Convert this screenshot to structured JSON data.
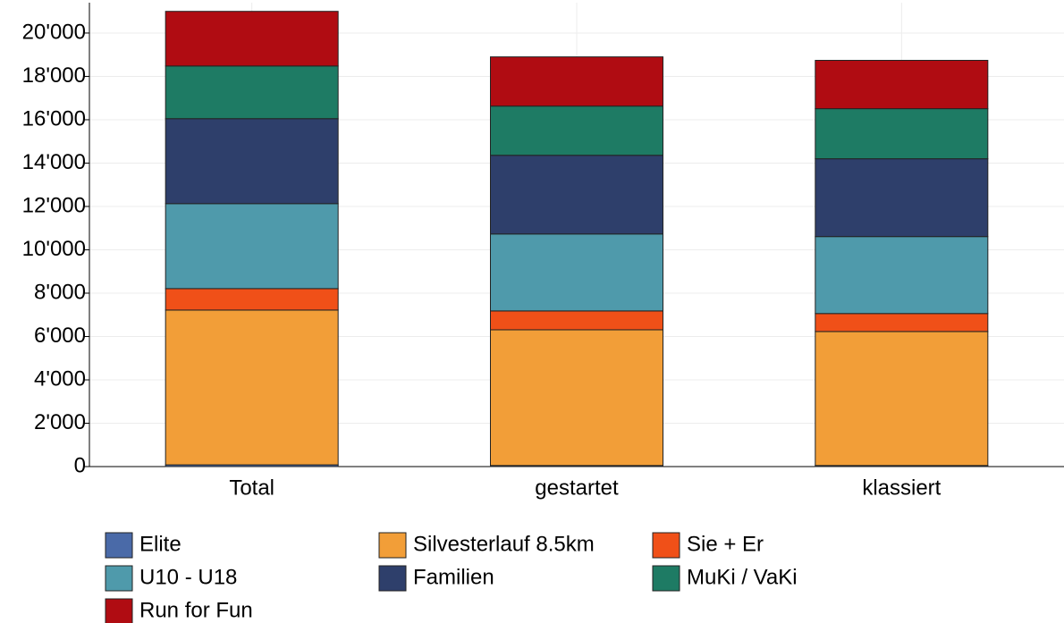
{
  "chart_data": {
    "type": "stacked_bar",
    "categories": [
      "Total",
      "gestartet",
      "klassiert"
    ],
    "series": [
      {
        "name": "Elite",
        "color": "#4a6aa8",
        "values": [
          80,
          50,
          50
        ]
      },
      {
        "name": "Silvesterlauf 8.5km",
        "color": "#f29e38",
        "values": [
          7140,
          6260,
          6180
        ]
      },
      {
        "name": "Sie + Er",
        "color": "#f05018",
        "values": [
          990,
          870,
          830
        ]
      },
      {
        "name": "U10 - U18",
        "color": "#4f9aab",
        "values": [
          3920,
          3550,
          3550
        ]
      },
      {
        "name": "Familien",
        "color": "#2e3f6b",
        "values": [
          3920,
          3630,
          3590
        ]
      },
      {
        "name": "MuKi / VaKi",
        "color": "#1e7b64",
        "values": [
          2430,
          2270,
          2310
        ]
      },
      {
        "name": "Run for Fun",
        "color": "#b00c12",
        "values": [
          2520,
          2270,
          2230
        ]
      }
    ],
    "ylim": [
      0,
      21400
    ],
    "yticks": [
      0,
      {
        "value": 2000,
        "label": "2'000"
      },
      {
        "value": 4000,
        "label": "4'000"
      },
      {
        "value": 6000,
        "label": "6'000"
      },
      {
        "value": 8000,
        "label": "8'000"
      },
      {
        "value": 10000,
        "label": "10'000"
      },
      {
        "value": 12000,
        "label": "12'000"
      },
      {
        "value": 14000,
        "label": "14'000"
      },
      {
        "value": 16000,
        "label": "16'000"
      },
      {
        "value": 18000,
        "label": "18'000"
      },
      {
        "value": 20000,
        "label": "20'000"
      }
    ],
    "grid": true,
    "legend": "bottom"
  }
}
